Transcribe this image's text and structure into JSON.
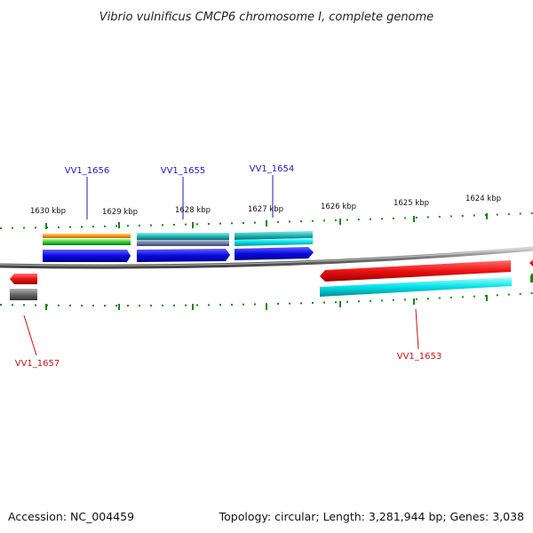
{
  "title": "Vibrio vulnificus CMCP6 chromosome I, complete genome",
  "footer": {
    "accession": "Accession: NC_004459",
    "topology": "Topology: circular; Length: 3,281,944 bp; Genes: 3,038"
  },
  "scale_labels": [
    "1630 kbp",
    "1629 kbp",
    "1628 kbp",
    "1627 kbp",
    "1626 kbp",
    "1625 kbp",
    "1624 kbp"
  ],
  "genes": [
    {
      "id": "VV1_1656",
      "strand": "forward"
    },
    {
      "id": "VV1_1655",
      "strand": "forward"
    },
    {
      "id": "VV1_1654",
      "strand": "forward"
    },
    {
      "id": "VV1_1657",
      "strand": "reverse"
    },
    {
      "id": "VV1_1653",
      "strand": "reverse"
    }
  ],
  "colors": {
    "cds_forward": "#0a0ae0",
    "cds_reverse": "#ee1111",
    "backbone": "#888888",
    "ticks": "#118811",
    "cyan": "#00d8e0",
    "teal": "#20b8b8",
    "orange": "#ff9a00",
    "green": "#33cc33",
    "slate": "#6e7fa8",
    "grey": "#666666"
  }
}
